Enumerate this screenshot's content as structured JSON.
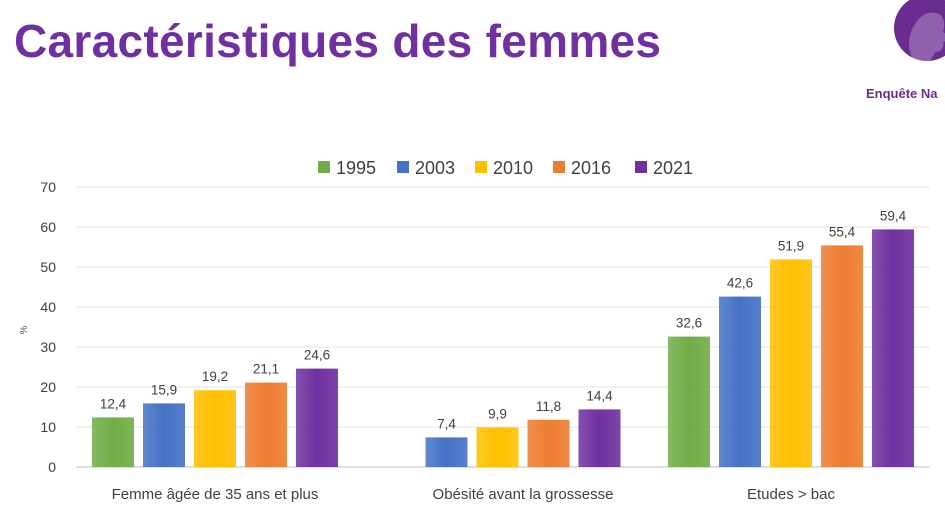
{
  "header": {
    "title": "Caractéristiques des femmes",
    "brand": "Enquête Na"
  },
  "colors": {
    "title": "#7030a0",
    "1995": "#70ad47",
    "2003": "#4472c4",
    "2010": "#ffc000",
    "2016": "#ed7d31",
    "2021": "#7030a0"
  },
  "chart_data": {
    "type": "bar",
    "title": "",
    "xlabel": "",
    "ylabel": "%",
    "ylim": [
      0,
      70
    ],
    "yticks": [
      0,
      10,
      20,
      30,
      40,
      50,
      60,
      70
    ],
    "grid": true,
    "legend_position": "top",
    "categories": [
      "Femme âgée de 35 ans et plus",
      "Obésité avant la grossesse",
      "Etudes > bac"
    ],
    "series": [
      {
        "name": "1995",
        "color": "#70ad47",
        "values": [
          12.4,
          null,
          32.6
        ],
        "labels": [
          "12,4",
          "",
          "32,6"
        ]
      },
      {
        "name": "2003",
        "color": "#4472c4",
        "values": [
          15.9,
          7.4,
          42.6
        ],
        "labels": [
          "15,9",
          "7,4",
          "42,6"
        ]
      },
      {
        "name": "2010",
        "color": "#ffc000",
        "values": [
          19.2,
          9.9,
          51.9
        ],
        "labels": [
          "19,2",
          "9,9",
          "51,9"
        ]
      },
      {
        "name": "2016",
        "color": "#ed7d31",
        "values": [
          21.1,
          11.8,
          55.4
        ],
        "labels": [
          "21,1",
          "11,8",
          "55,4"
        ]
      },
      {
        "name": "2021",
        "color": "#7030a0",
        "values": [
          24.6,
          14.4,
          59.4
        ],
        "labels": [
          "24,6",
          "14,4",
          "59,4"
        ]
      }
    ]
  }
}
